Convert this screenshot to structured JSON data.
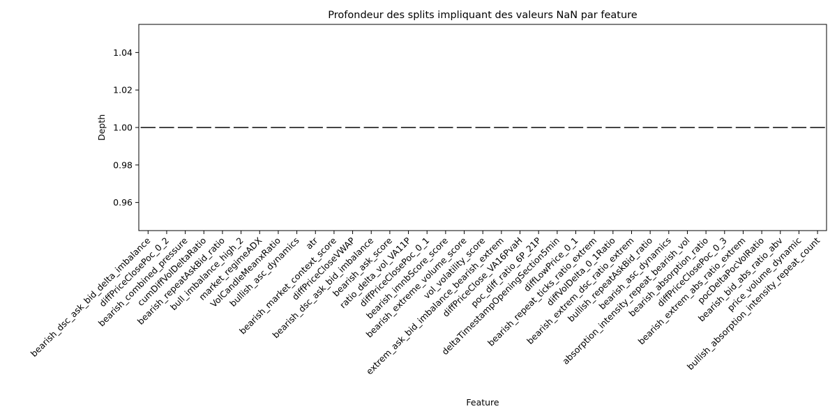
{
  "chart_data": {
    "type": "box",
    "title": "Profondeur des splits impliquant des valeurs NaN par feature",
    "xlabel": "Feature",
    "ylabel": "Depth",
    "ylim": [
      0.945,
      1.055
    ],
    "yticks": [
      "0.96",
      "0.98",
      "1.00",
      "1.02",
      "1.04"
    ],
    "ytick_values": [
      0.96,
      0.98,
      1.0,
      1.02,
      1.04
    ],
    "categories": [
      "bearish_dsc_ask_bid_delta_imbalance",
      "diffPriceClosePoc_0_2",
      "bearish_combined_pressure",
      "cumDiffVolDeltaRatio",
      "bearish_repeatAskBid_ratio",
      "bull_imbalance_high_2",
      "market_regimeADX",
      "VolCandleMeanxRatio",
      "bullish_asc_dynamics",
      "atr",
      "bearish_market_context_score",
      "diffPriceCloseVWAP",
      "bearish_dsc_ask_bid_imbalance",
      "bearish_ask_score",
      "ratio_delta_vol_VA11P",
      "diffPriceClosePoc_0_1",
      "bearish_imnbScore_score",
      "bearish_extreme_volume_score",
      "vol_volatility_score",
      "extrem_ask_bid_imbalance_bearish_extrem",
      "diffPriceClose_VA16PvaH",
      "poc_diff_ratio_6P_21P",
      "deltaTimestampOpeningSection5min",
      "diffLowPrice_0_1",
      "bearish_repeat_ticks_ratio_extrem",
      "diffVolDelta_0_1Ratio",
      "bearish_extrem_dsc_ratio_extrem",
      "bullish_repeatAskBid_ratio",
      "bearish_asc_dynamics",
      "absorption_intensity_repeat_bearish_vol",
      "bearish_absorption_ratio",
      "diffPriceClosePoc_0_3",
      "bearish_extrem_abs_ratio_extrem",
      "pocDeltaPocVolRatio",
      "bearish_bid_abs_ratio_abv",
      "price_volume_dynamic",
      "bullish_absorption_intensity_repeat_count"
    ],
    "values": [
      1,
      1,
      1,
      1,
      1,
      1,
      1,
      1,
      1,
      1,
      1,
      1,
      1,
      1,
      1,
      1,
      1,
      1,
      1,
      1,
      1,
      1,
      1,
      1,
      1,
      1,
      1,
      1,
      1,
      1,
      1,
      1,
      1,
      1,
      1,
      1,
      1
    ],
    "colors": {
      "axis": "#000000",
      "median": "#444444",
      "background": "#ffffff"
    }
  }
}
